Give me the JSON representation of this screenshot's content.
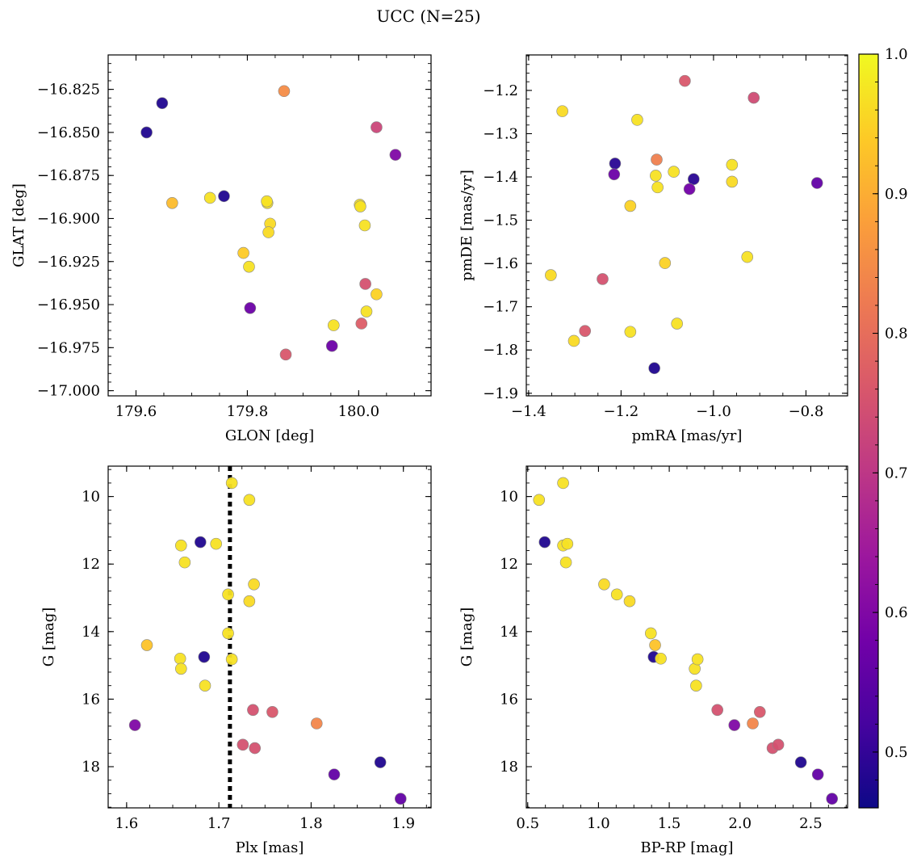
{
  "figure": {
    "title": "UCC (N=25)"
  },
  "colorbar": {
    "min": 0.46,
    "max": 1.0,
    "ticks": [
      0.5,
      0.6,
      0.7,
      0.8,
      0.9,
      1.0
    ],
    "tick_labels": [
      "0.5",
      "0.6",
      "0.7",
      "0.8",
      "0.9",
      "1.0"
    ],
    "colormap": "plasma",
    "colors": [
      "#0d0887",
      "#46039f",
      "#7201a8",
      "#9c179e",
      "#bd3786",
      "#d8576b",
      "#ed7953",
      "#fb9f3a",
      "#fdca26",
      "#f0f921"
    ]
  },
  "chart_data": [
    {
      "type": "scatter",
      "panel": "top-left",
      "xlabel": "GLON [deg]",
      "ylabel": "GLAT [deg]",
      "xlim": [
        179.55,
        180.13
      ],
      "ylim": [
        -17.003,
        -16.805
      ],
      "xticks": [
        179.6,
        179.8,
        180.0
      ],
      "xtick_labels": [
        "179.6",
        "179.8",
        "180.0"
      ],
      "yticks": [
        -17.0,
        -16.975,
        -16.95,
        -16.925,
        -16.9,
        -16.875,
        -16.85,
        -16.825
      ],
      "ytick_labels": [
        "−17.000",
        "−16.975",
        "−16.950",
        "−16.925",
        "−16.900",
        "−16.875",
        "−16.850",
        "−16.825"
      ],
      "x": [
        179.955,
        179.793,
        179.733,
        179.803,
        179.805,
        180.002,
        179.758,
        179.866,
        180.014,
        180.005,
        179.665,
        179.619,
        179.836,
        180.003,
        180.032,
        180.066,
        180.012,
        179.869,
        179.841,
        179.952,
        179.647,
        180.011,
        180.032,
        179.838,
        179.835
      ],
      "y": [
        -16.962,
        -16.92,
        -16.888,
        -16.928,
        -16.952,
        -16.892,
        -16.887,
        -16.826,
        -16.954,
        -16.961,
        -16.891,
        -16.85,
        -16.891,
        -16.893,
        -16.944,
        -16.863,
        -16.938,
        -16.979,
        -16.903,
        -16.974,
        -16.833,
        -16.904,
        -16.847,
        -16.908,
        -16.89
      ],
      "c": [
        0.97,
        0.94,
        0.97,
        0.97,
        0.57,
        0.97,
        0.48,
        0.85,
        0.97,
        0.77,
        0.92,
        0.48,
        0.97,
        0.97,
        0.95,
        0.6,
        0.75,
        0.76,
        0.96,
        0.57,
        0.48,
        0.97,
        0.73,
        0.96,
        0.97
      ]
    },
    {
      "type": "scatter",
      "panel": "top-right",
      "xlabel": "pmRA [mas/yr]",
      "ylabel": "pmDE [mas/yr]",
      "xlim": [
        -1.405,
        -0.71
      ],
      "ylim": [
        -1.906,
        -1.118
      ],
      "xticks": [
        -1.4,
        -1.2,
        -1.0,
        -0.8
      ],
      "xtick_labels": [
        "−1.4",
        "−1.2",
        "−1.0",
        "−0.8"
      ],
      "yticks": [
        -1.9,
        -1.8,
        -1.7,
        -1.6,
        -1.5,
        -1.4,
        -1.3,
        -1.2
      ],
      "ytick_labels": [
        "−1.9",
        "−1.8",
        "−1.7",
        "−1.6",
        "−1.5",
        "−1.4",
        "−1.3",
        "−1.2"
      ],
      "x": [
        -1.327,
        -1.165,
        -1.125,
        -1.121,
        -1.086,
        -0.96,
        -0.96,
        -1.18,
        -1.352,
        -1.105,
        -0.927,
        -1.302,
        -1.18,
        -1.079,
        -1.123,
        -1.213,
        -1.043,
        -1.062,
        -0.913,
        -1.24,
        -1.278,
        -1.215,
        -1.052,
        -0.776,
        -1.128
      ],
      "y": [
        -1.248,
        -1.268,
        -1.397,
        -1.424,
        -1.388,
        -1.372,
        -1.411,
        -1.467,
        -1.627,
        -1.599,
        -1.585,
        -1.779,
        -1.758,
        -1.739,
        -1.36,
        -1.369,
        -1.405,
        -1.178,
        -1.217,
        -1.636,
        -1.756,
        -1.394,
        -1.428,
        -1.414,
        -1.842
      ],
      "c": [
        0.96,
        0.97,
        0.97,
        0.97,
        0.97,
        0.97,
        0.96,
        0.95,
        0.96,
        0.95,
        0.97,
        0.96,
        0.97,
        0.97,
        0.83,
        0.49,
        0.49,
        0.76,
        0.74,
        0.75,
        0.76,
        0.57,
        0.58,
        0.56,
        0.48
      ]
    },
    {
      "type": "scatter",
      "panel": "bottom-left",
      "xlabel": "Plx [mas]",
      "ylabel": "G [mag]",
      "xlim": [
        1.58,
        1.93
      ],
      "ylim": [
        19.22,
        9.1
      ],
      "y_inverted": true,
      "vline_x": 1.712,
      "vline_style": "dotted black",
      "xticks": [
        1.6,
        1.7,
        1.8,
        1.9
      ],
      "xtick_labels": [
        "1.6",
        "1.7",
        "1.8",
        "1.9"
      ],
      "yticks": [
        10,
        12,
        14,
        16,
        18
      ],
      "ytick_labels": [
        "10",
        "12",
        "14",
        "16",
        "18"
      ],
      "x": [
        1.714,
        1.733,
        1.659,
        1.697,
        1.663,
        1.738,
        1.71,
        1.733,
        1.71,
        1.622,
        1.658,
        1.714,
        1.659,
        1.685,
        1.68,
        1.684,
        1.609,
        1.737,
        1.758,
        1.806,
        1.726,
        1.739,
        1.825,
        1.875,
        1.897
      ],
      "y": [
        9.6,
        10.1,
        11.45,
        11.4,
        11.95,
        12.6,
        12.9,
        13.1,
        14.05,
        14.4,
        14.8,
        14.82,
        15.1,
        15.6,
        11.35,
        14.75,
        16.77,
        16.32,
        16.38,
        16.72,
        17.35,
        17.45,
        18.23,
        17.87,
        18.95
      ],
      "c": [
        0.97,
        0.97,
        0.97,
        0.97,
        0.97,
        0.96,
        0.97,
        0.96,
        0.97,
        0.93,
        0.97,
        0.97,
        0.97,
        0.97,
        0.48,
        0.48,
        0.6,
        0.75,
        0.76,
        0.84,
        0.75,
        0.75,
        0.56,
        0.48,
        0.56
      ]
    },
    {
      "type": "scatter",
      "panel": "bottom-right",
      "xlabel": "BP-RP [mag]",
      "ylabel": "G [mag]",
      "xlim": [
        0.49,
        2.76
      ],
      "ylim": [
        19.22,
        9.1
      ],
      "y_inverted": true,
      "xticks": [
        0.5,
        1.0,
        1.5,
        2.0,
        2.5
      ],
      "xtick_labels": [
        "0.5",
        "1.0",
        "1.5",
        "2.0",
        "2.5"
      ],
      "yticks": [
        10,
        12,
        14,
        16,
        18
      ],
      "ytick_labels": [
        "10",
        "12",
        "14",
        "16",
        "18"
      ],
      "x": [
        0.58,
        0.75,
        0.62,
        0.75,
        0.78,
        0.77,
        1.04,
        1.13,
        1.22,
        1.37,
        1.4,
        1.39,
        1.44,
        1.68,
        1.7,
        1.69,
        1.84,
        1.96,
        2.09,
        2.14,
        2.23,
        2.27,
        2.43,
        2.55,
        2.65
      ],
      "y": [
        10.1,
        9.6,
        11.35,
        11.45,
        11.4,
        11.95,
        12.6,
        12.9,
        13.1,
        14.05,
        14.4,
        14.75,
        14.8,
        15.1,
        14.82,
        15.6,
        16.32,
        16.77,
        16.72,
        16.38,
        17.45,
        17.35,
        17.87,
        18.23,
        18.95
      ],
      "c": [
        0.97,
        0.97,
        0.48,
        0.97,
        0.97,
        0.97,
        0.96,
        0.97,
        0.96,
        0.97,
        0.93,
        0.48,
        0.97,
        0.97,
        0.97,
        0.97,
        0.75,
        0.6,
        0.84,
        0.76,
        0.75,
        0.75,
        0.48,
        0.56,
        0.56
      ]
    }
  ]
}
